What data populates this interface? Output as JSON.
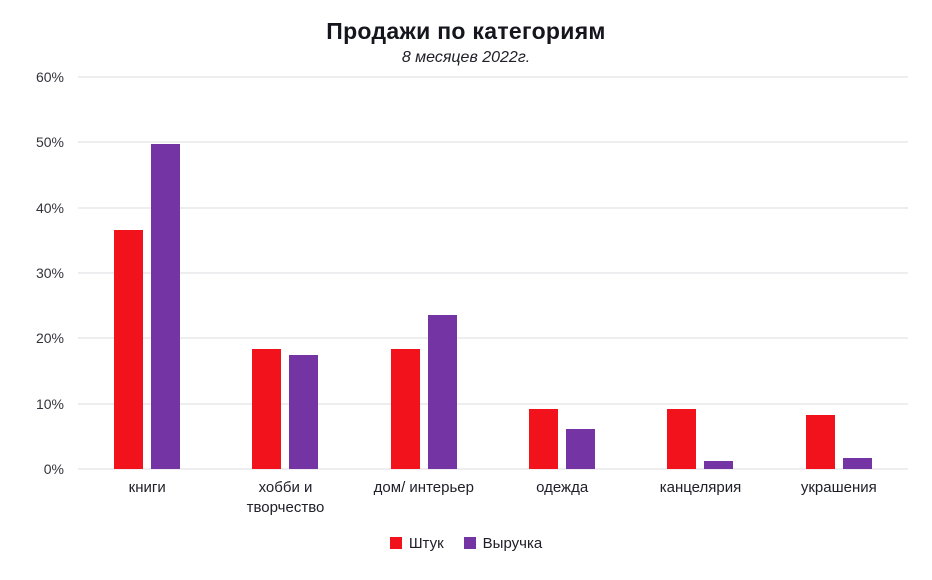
{
  "chart_data": {
    "type": "bar",
    "title": "Продажи по категориям",
    "subtitle": "8 месяцев 2022г.",
    "categories": [
      "книги",
      "хобби и творчество",
      "дом/ интерьер",
      "одежда",
      "канцелярия",
      "украшения"
    ],
    "series": [
      {
        "name": "Штук",
        "color": "#f2121b",
        "values": [
          36.6,
          18.3,
          18.3,
          9.2,
          9.2,
          8.2
        ]
      },
      {
        "name": "Выручка",
        "color": "#7434a4",
        "values": [
          49.8,
          17.4,
          23.6,
          6.2,
          1.2,
          1.7
        ]
      }
    ],
    "ylim": [
      0,
      60
    ],
    "yticks": [
      0,
      10,
      20,
      30,
      40,
      50,
      60
    ],
    "ytick_suffix": "%",
    "grid": true,
    "legend_position": "bottom"
  }
}
